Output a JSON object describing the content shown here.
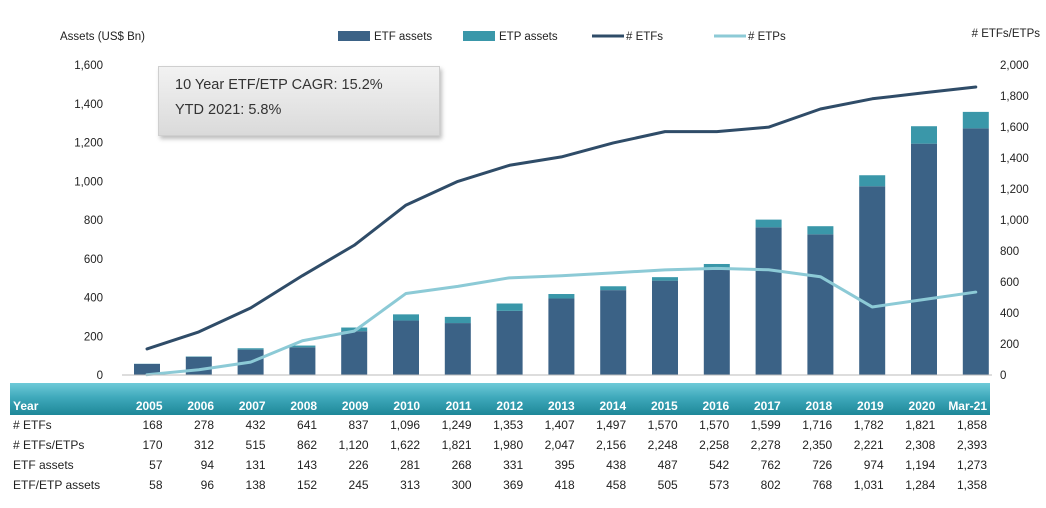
{
  "chart_data": {
    "type": "bar",
    "categories": [
      "2005",
      "2006",
      "2007",
      "2008",
      "2009",
      "2010",
      "2011",
      "2012",
      "2013",
      "2014",
      "2015",
      "2016",
      "2017",
      "2018",
      "2019",
      "2020",
      "Mar-21"
    ],
    "series": [
      {
        "name": "ETF assets",
        "kind": "bar",
        "axis": "left",
        "stack": "assets",
        "color": "#3b6286",
        "values": [
          57,
          94,
          131,
          143,
          226,
          281,
          268,
          331,
          395,
          438,
          487,
          542,
          762,
          726,
          974,
          1194,
          1273
        ]
      },
      {
        "name": "ETP assets",
        "kind": "bar",
        "axis": "left",
        "stack": "assets",
        "color": "#3a97a9",
        "values": [
          1,
          2,
          7,
          9,
          19,
          32,
          32,
          38,
          23,
          20,
          18,
          31,
          40,
          42,
          57,
          90,
          85
        ]
      },
      {
        "name": "# ETFs",
        "kind": "line",
        "axis": "right",
        "color": "#2f4c68",
        "values": [
          168,
          278,
          432,
          641,
          837,
          1096,
          1249,
          1353,
          1407,
          1497,
          1570,
          1570,
          1599,
          1716,
          1782,
          1821,
          1858
        ]
      },
      {
        "name": "# ETPs",
        "kind": "line",
        "axis": "right",
        "color": "#8ccad6",
        "values": [
          2,
          34,
          83,
          221,
          283,
          526,
          572,
          627,
          640,
          659,
          678,
          688,
          679,
          634,
          439,
          487,
          535
        ]
      }
    ],
    "ylabel": "Assets (US$ Bn)",
    "ylabel_right": "# ETFs/ETPs",
    "ylim": [
      0,
      1600
    ],
    "yticks": [
      "0",
      "200",
      "400",
      "600",
      "800",
      "1,000",
      "1,200",
      "1,400",
      "1,600"
    ],
    "ylim_right": [
      0,
      2000
    ],
    "yticks_right": [
      "0",
      "200",
      "400",
      "600",
      "800",
      "1,000",
      "1,200",
      "1,400",
      "1,600",
      "1,800",
      "2,000"
    ],
    "legend": "top",
    "grid": false,
    "annotation": {
      "line1": "10 Year ETF/ETP CAGR: 15.2%",
      "line2": "YTD 2021: 5.8%"
    }
  },
  "table": {
    "header_label": "Year",
    "years": [
      "2005",
      "2006",
      "2007",
      "2008",
      "2009",
      "2010",
      "2011",
      "2012",
      "2013",
      "2014",
      "2015",
      "2016",
      "2017",
      "2018",
      "2019",
      "2020",
      "Mar-21"
    ],
    "rows": [
      {
        "label": "# ETFs",
        "values": [
          "168",
          "278",
          "432",
          "641",
          "837",
          "1,096",
          "1,249",
          "1,353",
          "1,407",
          "1,497",
          "1,570",
          "1,570",
          "1,599",
          "1,716",
          "1,782",
          "1,821",
          "1,858"
        ]
      },
      {
        "label": "# ETFs/ETPs",
        "values": [
          "170",
          "312",
          "515",
          "862",
          "1,120",
          "1,622",
          "1,821",
          "1,980",
          "2,047",
          "2,156",
          "2,248",
          "2,258",
          "2,278",
          "2,350",
          "2,221",
          "2,308",
          "2,393"
        ]
      },
      {
        "label": "ETF assets",
        "values": [
          "57",
          "94",
          "131",
          "143",
          "226",
          "281",
          "268",
          "331",
          "395",
          "438",
          "487",
          "542",
          "762",
          "726",
          "974",
          "1,194",
          "1,273"
        ]
      },
      {
        "label": "ETF/ETP assets",
        "values": [
          "58",
          "96",
          "138",
          "152",
          "245",
          "313",
          "300",
          "369",
          "418",
          "458",
          "505",
          "573",
          "802",
          "768",
          "1,031",
          "1,284",
          "1,358"
        ]
      }
    ]
  }
}
